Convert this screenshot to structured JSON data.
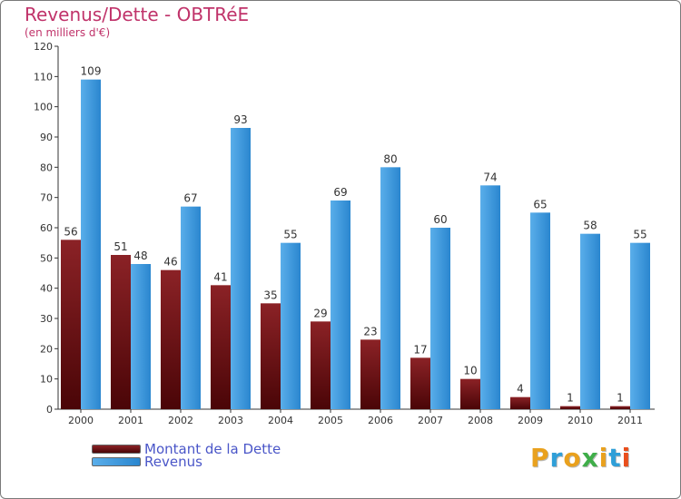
{
  "header": {
    "title": "Revenus/Dette - OBTRéE",
    "subtitle": "(en milliers d'€)"
  },
  "legend": {
    "debt_label": "Montant de la Dette",
    "revenue_label": "Revenus"
  },
  "logo": {
    "text": "Proxiti",
    "letters": [
      "P",
      "r",
      "o",
      "x",
      "i",
      "t",
      "i"
    ]
  },
  "colors": {
    "title": "#c0336a",
    "debt_top": "#8b2226",
    "debt_bottom": "#4a0507",
    "revenue_top": "#5aaeea",
    "revenue_bottom": "#2a86cf",
    "legend_text": "#4a56c8",
    "logo_letters": [
      "#e9a11e",
      "#2f9fd8",
      "#e9a11e",
      "#3fae49",
      "#e9a11e",
      "#2f9fd8",
      "#e94e1b"
    ]
  },
  "chart_data": {
    "type": "bar",
    "title": "Revenus/Dette - OBTRéE",
    "ylabel": "(en milliers d'€)",
    "xlabel": "",
    "categories": [
      "2000",
      "2001",
      "2002",
      "2003",
      "2004",
      "2005",
      "2006",
      "2007",
      "2008",
      "2009",
      "2010",
      "2011"
    ],
    "series": [
      {
        "name": "Montant de la Dette",
        "values": [
          56,
          51,
          46,
          41,
          35,
          29,
          23,
          17,
          10,
          4,
          1,
          1
        ]
      },
      {
        "name": "Revenus",
        "values": [
          109,
          48,
          67,
          93,
          55,
          69,
          80,
          60,
          74,
          65,
          58,
          55
        ]
      }
    ],
    "ylim": [
      0,
      120
    ],
    "yticks": [
      0,
      10,
      20,
      30,
      40,
      50,
      60,
      70,
      80,
      90,
      100,
      110,
      120
    ],
    "grid": false,
    "legend_position": "bottom-left"
  }
}
